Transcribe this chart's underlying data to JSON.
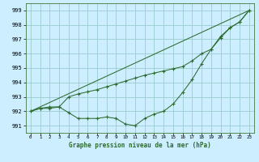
{
  "title": "Graphe pression niveau de la mer (hPa)",
  "bg_color": "#cceeff",
  "grid_color": "#99cccc",
  "line_color": "#2d6b2d",
  "xlim": [
    -0.5,
    23.5
  ],
  "ylim": [
    990.5,
    999.5
  ],
  "yticks": [
    991,
    992,
    993,
    994,
    995,
    996,
    997,
    998,
    999
  ],
  "xticks": [
    0,
    1,
    2,
    3,
    4,
    5,
    6,
    7,
    8,
    9,
    10,
    11,
    12,
    13,
    14,
    15,
    16,
    17,
    18,
    19,
    20,
    21,
    22,
    23
  ],
  "series_bottom": {
    "x": [
      0,
      1,
      2,
      3,
      4,
      5,
      6,
      7,
      8,
      9,
      10,
      11,
      12,
      13,
      14,
      15,
      16,
      17,
      18,
      19,
      20,
      21,
      22,
      23
    ],
    "y": [
      992.0,
      992.2,
      992.2,
      992.3,
      991.9,
      991.5,
      991.5,
      991.5,
      991.6,
      991.5,
      991.1,
      991.0,
      991.5,
      991.8,
      992.0,
      992.5,
      993.3,
      994.2,
      995.3,
      996.3,
      997.1,
      997.8,
      998.2,
      999.0
    ]
  },
  "series_upper": {
    "x": [
      0,
      1,
      2,
      3,
      4,
      5,
      6,
      7,
      8,
      9,
      10,
      11,
      12,
      13,
      14,
      15,
      16,
      17,
      18,
      19,
      20,
      21,
      22,
      23
    ],
    "y": [
      992.0,
      992.2,
      992.3,
      992.3,
      993.0,
      993.2,
      993.35,
      993.5,
      993.7,
      993.9,
      994.1,
      994.3,
      994.5,
      994.65,
      994.8,
      994.95,
      995.1,
      995.5,
      996.0,
      996.3,
      997.2,
      997.8,
      998.2,
      999.0
    ]
  },
  "series_straight": {
    "x": [
      0,
      23
    ],
    "y": [
      992.0,
      999.0
    ]
  }
}
